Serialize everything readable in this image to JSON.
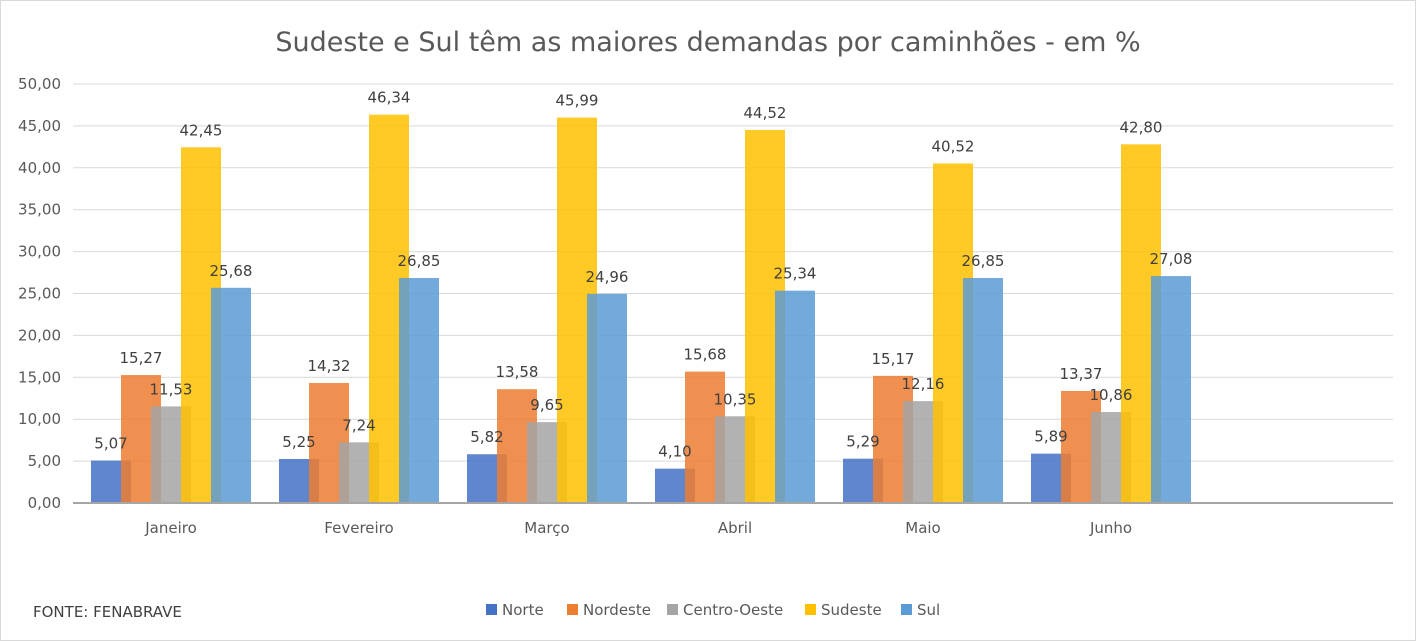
{
  "chart_data": {
    "type": "bar",
    "title": "Sudeste e Sul têm as maiores demandas por caminhões - em %",
    "source": "FONTE: FENABRAVE",
    "categories": [
      "Janeiro",
      "Fevereiro",
      "Março",
      "Abril",
      "Maio",
      "Junho"
    ],
    "series": [
      {
        "name": "Norte",
        "color": "#4472C4",
        "values": [
          5.07,
          5.25,
          5.82,
          4.1,
          5.29,
          5.89
        ],
        "labels": [
          "5,07",
          "5,25",
          "5,82",
          "4,10",
          "5,29",
          "5,89"
        ]
      },
      {
        "name": "Nordeste",
        "color": "#ED7D31",
        "values": [
          15.27,
          14.32,
          13.58,
          15.68,
          15.17,
          13.37
        ],
        "labels": [
          "15,27",
          "14,32",
          "13,58",
          "15,68",
          "15,17",
          "13,37"
        ]
      },
      {
        "name": "Centro-Oeste",
        "color": "#A5A5A5",
        "values": [
          11.53,
          7.24,
          9.65,
          10.35,
          12.16,
          10.86
        ],
        "labels": [
          "11,53",
          "7,24",
          "9,65",
          "10,35",
          "12,16",
          "10,86"
        ]
      },
      {
        "name": "Sudeste",
        "color": "#FFC000",
        "values": [
          42.45,
          46.34,
          45.99,
          44.52,
          40.52,
          42.8
        ],
        "labels": [
          "42,45",
          "46,34",
          "45,99",
          "44,52",
          "40,52",
          "42,80"
        ]
      },
      {
        "name": "Sul",
        "color": "#5B9BD5",
        "values": [
          25.68,
          26.85,
          24.96,
          25.34,
          26.85,
          27.08
        ],
        "labels": [
          "25,68",
          "26,85",
          "24,96",
          "25,34",
          "26,85",
          "27,08"
        ]
      }
    ],
    "yticks": [
      "0,00",
      "5,00",
      "10,00",
      "15,00",
      "20,00",
      "25,00",
      "30,00",
      "35,00",
      "40,00",
      "45,00",
      "50,00"
    ],
    "ylim": [
      0,
      50
    ],
    "grid": true,
    "legend_position": "bottom"
  }
}
